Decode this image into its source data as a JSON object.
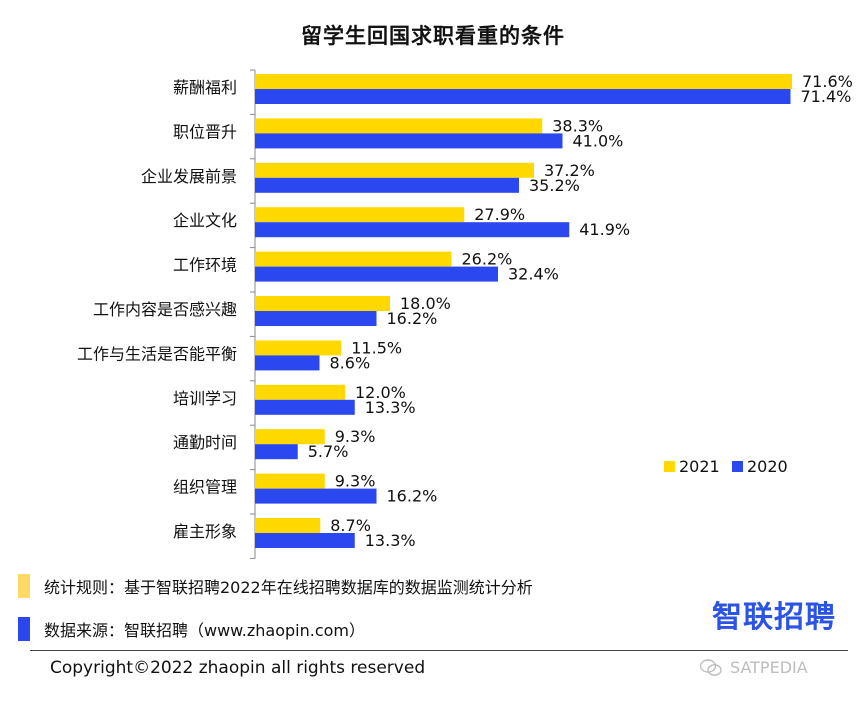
{
  "chart_data": {
    "type": "bar",
    "orientation": "horizontal",
    "title": "留学生回国求职看重的条件",
    "categories": [
      "薪酬福利",
      "职位晋升",
      "企业发展前景",
      "企业文化",
      "工作环境",
      "工作内容是否感兴趣",
      "工作与生活是否能平衡",
      "培训学习",
      "通勤时间",
      "组织管理",
      "雇主形象"
    ],
    "series": [
      {
        "name": "2021",
        "color": "#FFD800",
        "values": [
          71.6,
          38.3,
          37.2,
          27.9,
          26.2,
          18.0,
          11.5,
          12.0,
          9.3,
          9.3,
          8.7
        ],
        "labels": [
          "71.6%",
          "38.3%",
          "37.2%",
          "27.9%",
          "26.2%",
          "18.0%",
          "11.5%",
          "12.0%",
          "9.3%",
          "9.3%",
          "8.7%"
        ]
      },
      {
        "name": "2020",
        "color": "#2B47F0",
        "values": [
          71.4,
          41.0,
          35.2,
          41.9,
          32.4,
          16.2,
          8.6,
          13.3,
          5.7,
          16.2,
          13.3
        ],
        "labels": [
          "71.4%",
          "41.0%",
          "35.2%",
          "41.9%",
          "32.4%",
          "16.2%",
          "8.6%",
          "13.3%",
          "5.7%",
          "16.2%",
          "13.3%"
        ]
      }
    ],
    "xlim": [
      0,
      72
    ],
    "legend_position": "right",
    "grid": false
  },
  "notes": {
    "stat_rule": "统计规则：基于智联招聘2022年在线招聘数据库的数据监测统计分析",
    "stat_rule_color": "#FFD966",
    "source": "数据来源：智联招聘（www.zhaopin.com）",
    "source_color": "#2B47F0"
  },
  "brand": {
    "logo_text": "智联招聘",
    "color": "#2B54E6"
  },
  "footer": {
    "copyright": "Copyright©2022 zhaopin all rights reserved",
    "watermark": "SATPEDIA",
    "watermark_icon": "wechat-icon"
  }
}
